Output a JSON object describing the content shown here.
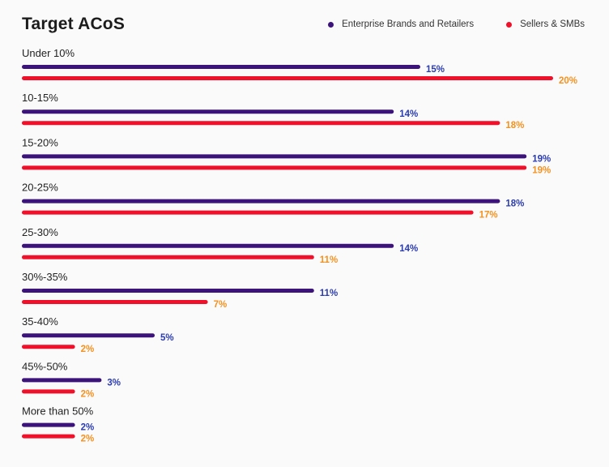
{
  "colors": {
    "enterprise": "#3b137a",
    "enterprise_label": "#2b3cb0",
    "sellers": "#f0102a",
    "sellers_label": "#f5911e"
  },
  "chart_data": {
    "type": "bar",
    "orientation": "horizontal",
    "title": "Target ACoS",
    "categories": [
      "Under 10%",
      "10-15%",
      "15-20%",
      "20-25%",
      "25-30%",
      "30%-35%",
      "35-40%",
      "45%-50%",
      "More than 50%"
    ],
    "series": [
      {
        "name": "Enterprise Brands and Retailers",
        "values": [
          15,
          14,
          19,
          18,
          14,
          11,
          5,
          3,
          2
        ],
        "labels": [
          "15%",
          "14%",
          "19%",
          "18%",
          "14%",
          "11%",
          "5%",
          "3%",
          "2%"
        ]
      },
      {
        "name": "Sellers & SMBs",
        "values": [
          20,
          18,
          19,
          17,
          11,
          7,
          2,
          2,
          2
        ],
        "labels": [
          "20%",
          "18%",
          "19%",
          "17%",
          "11%",
          "7%",
          "2%",
          "2%",
          "2%"
        ]
      }
    ],
    "xlim": [
      0,
      20
    ],
    "legend": "top-right",
    "grid": false
  }
}
